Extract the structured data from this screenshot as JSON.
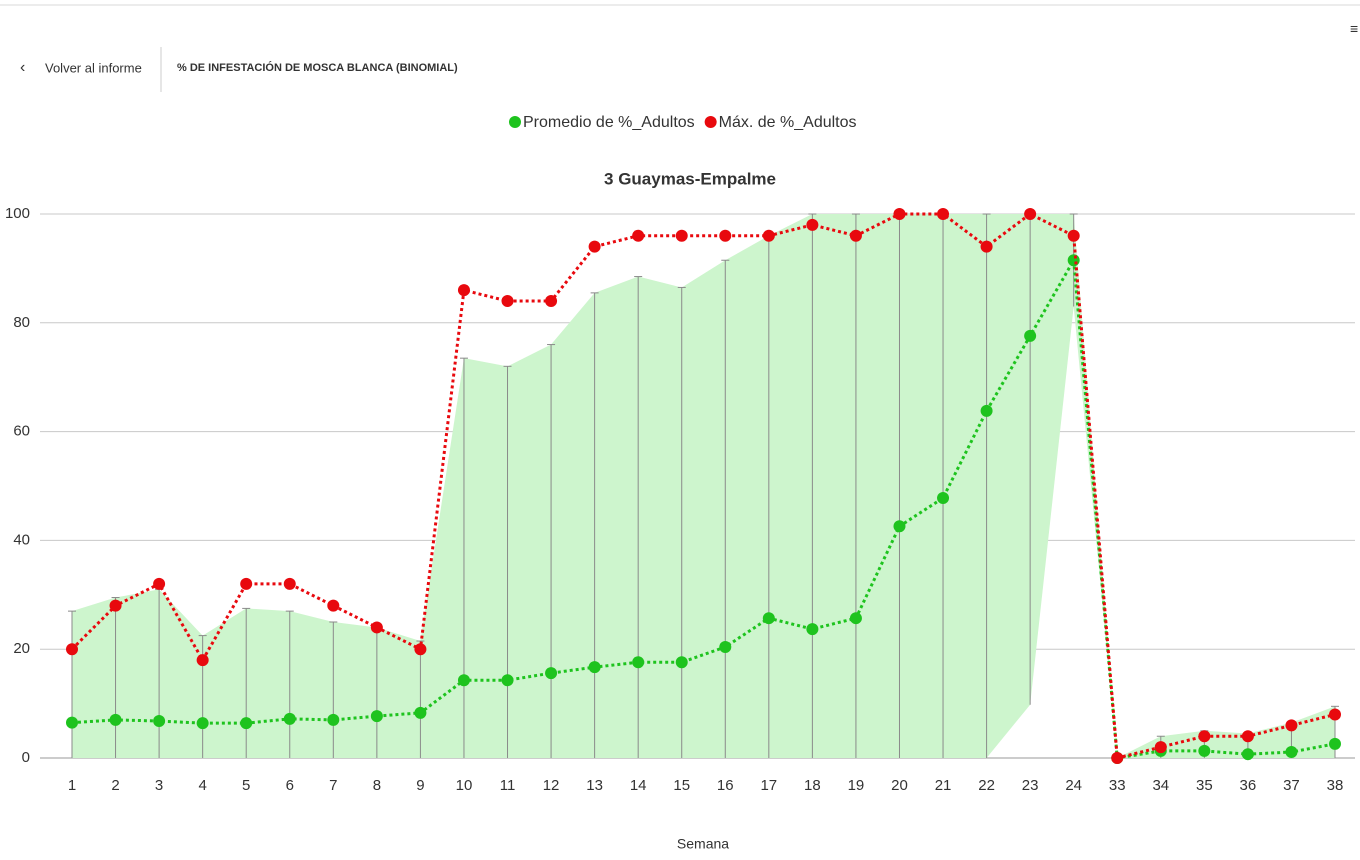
{
  "header": {
    "back": "Volver al informe",
    "title": "% DE INFESTACIÓN DE MOSCA BLANCA (BINOMIAL)"
  },
  "chart_data": {
    "type": "line",
    "title": "3 Guaymas-Empalme",
    "x_label": "Semana",
    "categories": [
      "1",
      "2",
      "3",
      "4",
      "5",
      "6",
      "7",
      "8",
      "9",
      "10",
      "11",
      "12",
      "13",
      "14",
      "15",
      "16",
      "17",
      "18",
      "19",
      "20",
      "21",
      "22",
      "23",
      "24",
      "33",
      "34",
      "35",
      "36",
      "37",
      "38"
    ],
    "series": [
      {
        "name": "Promedio de %_Adultos",
        "color": "#1ec31e",
        "values": [
          6.5,
          7,
          6.8,
          6.4,
          6.4,
          7.2,
          7,
          7.7,
          8.3,
          14.3,
          14.3,
          15.6,
          16.7,
          17.6,
          17.6,
          20.4,
          25.7,
          23.7,
          25.7,
          42.6,
          47.8,
          63.8,
          77.6,
          91.5,
          0,
          1.3,
          1.3,
          0.7,
          1.1,
          2.6
        ]
      },
      {
        "name": "Máx. de %_Adultos",
        "color": "#e8090e",
        "values": [
          20,
          28,
          32,
          18,
          32,
          32,
          28,
          24,
          20,
          86,
          84,
          84,
          94,
          96,
          96,
          96,
          96,
          98,
          96,
          100,
          100,
          94,
          100,
          96,
          0,
          2,
          4,
          4,
          6,
          8
        ]
      }
    ],
    "band": {
      "color": "#cdf5cd",
      "upper": [
        27,
        29.5,
        31,
        22.5,
        27.5,
        27,
        25,
        24,
        21.5,
        73.5,
        72,
        76,
        85.5,
        88.5,
        86.5,
        91.5,
        96,
        100,
        100,
        100,
        100,
        100,
        100,
        100,
        0,
        4,
        5,
        4.5,
        6.5,
        9.5
      ],
      "lower": [
        0,
        0,
        0,
        0,
        0,
        0,
        0,
        0,
        0,
        0,
        0,
        0,
        0,
        0,
        0,
        0,
        0,
        0,
        0,
        0,
        0,
        0,
        9.8,
        83,
        0,
        0,
        0,
        0,
        0,
        0
      ]
    },
    "ylim": [
      0,
      100
    ],
    "yticks": [
      0,
      20,
      40,
      60,
      80,
      100
    ],
    "grid": true,
    "legend": "top"
  }
}
